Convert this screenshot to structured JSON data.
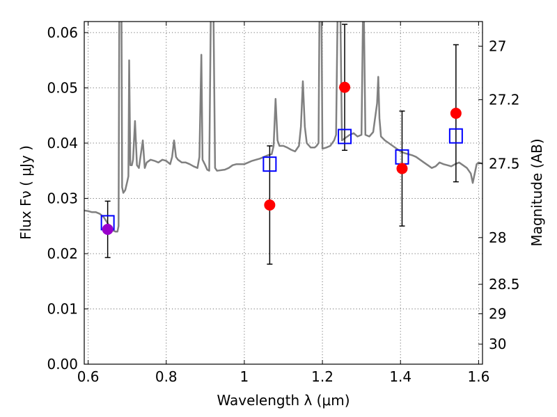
{
  "chart_data": {
    "type": "scatter",
    "xlabel": "Wavelength  λ (μm)",
    "ylabel": "Flux  Fν  ( μJy )",
    "y2label": "Magnitude (AB)",
    "xlim": [
      0.59,
      1.61
    ],
    "ylim": [
      0.0,
      0.062
    ],
    "grid": true,
    "x_ticks": [
      0.6,
      0.8,
      1.0,
      1.2,
      1.4,
      1.6
    ],
    "x_tick_labels": [
      "0.6",
      "0.8",
      "1",
      "1.2",
      "1.4",
      "1.6"
    ],
    "y_ticks": [
      0.0,
      0.01,
      0.02,
      0.03,
      0.04,
      0.05,
      0.06
    ],
    "y_tick_labels": [
      "0.00",
      "0.01",
      "0.02",
      "0.03",
      "0.04",
      "0.05",
      "0.06"
    ],
    "y2_ticks": [
      {
        "mag": 27,
        "label": "27"
      },
      {
        "mag": 27.2,
        "label": "27.2"
      },
      {
        "mag": 27.5,
        "label": "27.5"
      },
      {
        "mag": 28,
        "label": "28"
      },
      {
        "mag": 28.5,
        "label": "28.5"
      },
      {
        "mag": 29,
        "label": "29"
      },
      {
        "mag": 30,
        "label": "30"
      }
    ],
    "series": [
      {
        "type": "line",
        "color": "#808080",
        "points": [
          [
            0.59,
            0.0278
          ],
          [
            0.6,
            0.0277
          ],
          [
            0.61,
            0.0275
          ],
          [
            0.62,
            0.0275
          ],
          [
            0.63,
            0.0272
          ],
          [
            0.64,
            0.0266
          ],
          [
            0.65,
            0.0255
          ],
          [
            0.66,
            0.0243
          ],
          [
            0.67,
            0.024
          ],
          [
            0.675,
            0.024
          ],
          [
            0.678,
            0.025
          ],
          [
            0.68,
            0.07
          ],
          [
            0.685,
            0.07
          ],
          [
            0.687,
            0.032
          ],
          [
            0.69,
            0.031
          ],
          [
            0.695,
            0.0315
          ],
          [
            0.7,
            0.033
          ],
          [
            0.703,
            0.034
          ],
          [
            0.705,
            0.055
          ],
          [
            0.708,
            0.036
          ],
          [
            0.712,
            0.036
          ],
          [
            0.715,
            0.037
          ],
          [
            0.72,
            0.044
          ],
          [
            0.725,
            0.036
          ],
          [
            0.73,
            0.0355
          ],
          [
            0.735,
            0.038
          ],
          [
            0.74,
            0.0405
          ],
          [
            0.745,
            0.0355
          ],
          [
            0.75,
            0.0365
          ],
          [
            0.76,
            0.037
          ],
          [
            0.77,
            0.0368
          ],
          [
            0.78,
            0.0365
          ],
          [
            0.79,
            0.037
          ],
          [
            0.8,
            0.0368
          ],
          [
            0.81,
            0.0362
          ],
          [
            0.815,
            0.0375
          ],
          [
            0.82,
            0.0405
          ],
          [
            0.825,
            0.0375
          ],
          [
            0.83,
            0.037
          ],
          [
            0.84,
            0.0365
          ],
          [
            0.85,
            0.0365
          ],
          [
            0.86,
            0.0362
          ],
          [
            0.87,
            0.0358
          ],
          [
            0.88,
            0.0355
          ],
          [
            0.885,
            0.0375
          ],
          [
            0.89,
            0.056
          ],
          [
            0.893,
            0.037
          ],
          [
            0.9,
            0.036
          ],
          [
            0.905,
            0.0352
          ],
          [
            0.91,
            0.035
          ],
          [
            0.915,
            0.07
          ],
          [
            0.92,
            0.07
          ],
          [
            0.925,
            0.0355
          ],
          [
            0.93,
            0.035
          ],
          [
            0.95,
            0.0352
          ],
          [
            0.96,
            0.0355
          ],
          [
            0.97,
            0.036
          ],
          [
            0.98,
            0.0362
          ],
          [
            0.99,
            0.0362
          ],
          [
            1.0,
            0.0362
          ],
          [
            1.01,
            0.0365
          ],
          [
            1.02,
            0.0368
          ],
          [
            1.03,
            0.037
          ],
          [
            1.04,
            0.0372
          ],
          [
            1.05,
            0.0375
          ],
          [
            1.06,
            0.0378
          ],
          [
            1.07,
            0.038
          ],
          [
            1.075,
            0.0395
          ],
          [
            1.08,
            0.048
          ],
          [
            1.085,
            0.0405
          ],
          [
            1.09,
            0.0395
          ],
          [
            1.1,
            0.0395
          ],
          [
            1.11,
            0.0392
          ],
          [
            1.12,
            0.0388
          ],
          [
            1.13,
            0.0385
          ],
          [
            1.14,
            0.0395
          ],
          [
            1.145,
            0.043
          ],
          [
            1.15,
            0.0512
          ],
          [
            1.155,
            0.043
          ],
          [
            1.16,
            0.04
          ],
          [
            1.17,
            0.0392
          ],
          [
            1.18,
            0.0392
          ],
          [
            1.185,
            0.0395
          ],
          [
            1.19,
            0.04
          ],
          [
            1.193,
            0.07
          ],
          [
            1.197,
            0.07
          ],
          [
            1.2,
            0.039
          ],
          [
            1.21,
            0.0392
          ],
          [
            1.22,
            0.0395
          ],
          [
            1.225,
            0.04
          ],
          [
            1.23,
            0.0405
          ],
          [
            1.235,
            0.0415
          ],
          [
            1.24,
            0.07
          ],
          [
            1.245,
            0.07
          ],
          [
            1.25,
            0.0405
          ],
          [
            1.26,
            0.041
          ],
          [
            1.27,
            0.0415
          ],
          [
            1.28,
            0.0418
          ],
          [
            1.29,
            0.0412
          ],
          [
            1.3,
            0.0415
          ],
          [
            1.305,
            0.07
          ],
          [
            1.31,
            0.0415
          ],
          [
            1.32,
            0.0412
          ],
          [
            1.33,
            0.042
          ],
          [
            1.34,
            0.0472
          ],
          [
            1.343,
            0.052
          ],
          [
            1.346,
            0.0445
          ],
          [
            1.35,
            0.0412
          ],
          [
            1.36,
            0.0405
          ],
          [
            1.37,
            0.04
          ],
          [
            1.38,
            0.0395
          ],
          [
            1.39,
            0.039
          ],
          [
            1.4,
            0.0385
          ],
          [
            1.41,
            0.0382
          ],
          [
            1.42,
            0.038
          ],
          [
            1.43,
            0.0378
          ],
          [
            1.44,
            0.0375
          ],
          [
            1.45,
            0.037
          ],
          [
            1.46,
            0.0365
          ],
          [
            1.47,
            0.036
          ],
          [
            1.48,
            0.0355
          ],
          [
            1.49,
            0.0358
          ],
          [
            1.5,
            0.0365
          ],
          [
            1.51,
            0.0362
          ],
          [
            1.52,
            0.036
          ],
          [
            1.53,
            0.0358
          ],
          [
            1.54,
            0.0362
          ],
          [
            1.55,
            0.0365
          ],
          [
            1.56,
            0.036
          ],
          [
            1.57,
            0.0355
          ],
          [
            1.58,
            0.0345
          ],
          [
            1.585,
            0.0328
          ],
          [
            1.59,
            0.0345
          ],
          [
            1.595,
            0.0362
          ],
          [
            1.6,
            0.0365
          ],
          [
            1.61,
            0.0363
          ]
        ]
      },
      {
        "type": "model_points",
        "marker": "open-square",
        "color": "#0000ff",
        "points": [
          [
            0.65,
            0.0256
          ],
          [
            1.065,
            0.0362
          ],
          [
            1.257,
            0.0412
          ],
          [
            1.404,
            0.0375
          ],
          [
            1.542,
            0.0413
          ]
        ]
      },
      {
        "type": "observed_points",
        "marker": "filled-circle",
        "color": "#ff0000",
        "points": [
          {
            "x": 0.65,
            "y": 0.0244,
            "err_low": 0.0051,
            "err_high": 0.0051,
            "color": "#9900cc"
          },
          {
            "x": 1.065,
            "y": 0.0288,
            "err_low": 0.0107,
            "err_high": 0.0107,
            "color": "#ff0000"
          },
          {
            "x": 1.257,
            "y": 0.0501,
            "err_low": 0.0114,
            "err_high": 0.0114,
            "color": "#ff0000"
          },
          {
            "x": 1.404,
            "y": 0.0354,
            "err_low": 0.0104,
            "err_high": 0.0104,
            "color": "#ff0000"
          },
          {
            "x": 1.542,
            "y": 0.0454,
            "err_low": 0.0124,
            "err_high": 0.0124,
            "color": "#ff0000"
          }
        ]
      }
    ]
  }
}
